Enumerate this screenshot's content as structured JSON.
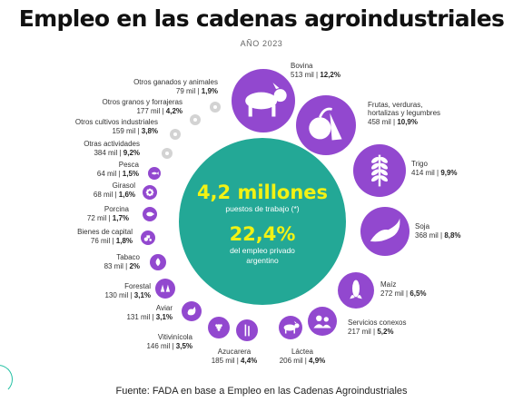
{
  "title": "Empleo en las cadenas agroindustriales",
  "subtitle": "AÑO 2023",
  "source": "Fuente: FADA en base a Empleo en las Cadenas Agroindustriales",
  "colors": {
    "circle": "#9248cf",
    "center": "#23a896",
    "highlight": "#f2f214",
    "muted": "#d3d3d3"
  },
  "center": {
    "total": "4,2 millones",
    "total_label": "puestos de trabajo (*)",
    "share": "22,4%",
    "share_line1": "del empleo privado",
    "share_line2": "argentino"
  },
  "chart_data": {
    "type": "bubble",
    "unit": "mil",
    "items": [
      {
        "name": "Bovina",
        "value_label": "513 mil",
        "value": 513,
        "pct_label": "12,2%",
        "pct": 12.2,
        "icon": "cow-icon"
      },
      {
        "name_lines": [
          "Frutas, verduras,",
          "hortalizas y legumbres"
        ],
        "value_label": "458 mil",
        "value": 458,
        "pct_label": "10,9%",
        "pct": 10.9,
        "icon": "fruit-icon"
      },
      {
        "name": "Trigo",
        "value_label": "414 mil",
        "value": 414,
        "pct_label": "9,9%",
        "pct": 9.9,
        "icon": "wheat-icon"
      },
      {
        "name": "Soja",
        "value_label": "368 mil",
        "value": 368,
        "pct_label": "8,8%",
        "pct": 8.8,
        "icon": "soybean-icon"
      },
      {
        "name": "Maíz",
        "value_label": "272 mil",
        "value": 272,
        "pct_label": "6,5%",
        "pct": 6.5,
        "icon": "corn-icon"
      },
      {
        "name": "Servicios conexos",
        "value_label": "217 mil",
        "value": 217,
        "pct_label": "5,2%",
        "pct": 5.2,
        "icon": "people-icon"
      },
      {
        "name": "Láctea",
        "value_label": "206 mil",
        "value": 206,
        "pct_label": "4,9%",
        "pct": 4.9,
        "icon": "dairy-cow-icon"
      },
      {
        "name": "Azucarera",
        "value_label": "185 mil",
        "value": 185,
        "pct_label": "4,4%",
        "pct": 4.4,
        "icon": "sugarcane-icon"
      },
      {
        "name": "Vitivinícola",
        "value_label": "146 mil",
        "value": 146,
        "pct_label": "3,5%",
        "pct": 3.5,
        "icon": "grapes-icon"
      },
      {
        "name": "Aviar",
        "value_label": "131 mil",
        "value": 131,
        "pct_label": "3,1%",
        "pct": 3.1,
        "icon": "chicken-icon"
      },
      {
        "name": "Forestal",
        "value_label": "130 mil",
        "value": 130,
        "pct_label": "3,1%",
        "pct": 3.1,
        "icon": "trees-icon"
      },
      {
        "name": "Tabaco",
        "value_label": "83 mil",
        "value": 83,
        "pct_label": "2%",
        "pct": 2,
        "icon": "tobacco-icon"
      },
      {
        "name": "Bienes de capital",
        "value_label": "76 mil",
        "value": 76,
        "pct_label": "1,8%",
        "pct": 1.8,
        "icon": "tractor-icon"
      },
      {
        "name": "Porcina",
        "value_label": "72 mil",
        "value": 72,
        "pct_label": "1,7%",
        "pct": 1.7,
        "icon": "pig-icon"
      },
      {
        "name": "Girasol",
        "value_label": "68 mil",
        "value": 68,
        "pct_label": "1,6%",
        "pct": 1.6,
        "icon": "sunflower-icon"
      },
      {
        "name": "Pesca",
        "value_label": "64 mil",
        "value": 64,
        "pct_label": "1,5%",
        "pct": 1.5,
        "icon": "fish-icon"
      },
      {
        "name": "Otras actividades",
        "value_label": "384 mil",
        "value": 384,
        "pct_label": "9,2%",
        "pct": 9.2,
        "icon": "other-activities-icon"
      },
      {
        "name": "Otros cultivos industriales",
        "value_label": "159 mil",
        "value": 159,
        "pct_label": "3,8%",
        "pct": 3.8,
        "icon": "other-crops-icon"
      },
      {
        "name": "Otros granos y forrajeras",
        "value_label": "177 mil",
        "value": 177,
        "pct_label": "4,2%",
        "pct": 4.2,
        "icon": "grain-icon"
      },
      {
        "name": "Otros ganados y animales",
        "value_label": "79 mil",
        "value": 79,
        "pct_label": "1,9%",
        "pct": 1.9,
        "icon": "other-livestock-icon"
      }
    ]
  }
}
